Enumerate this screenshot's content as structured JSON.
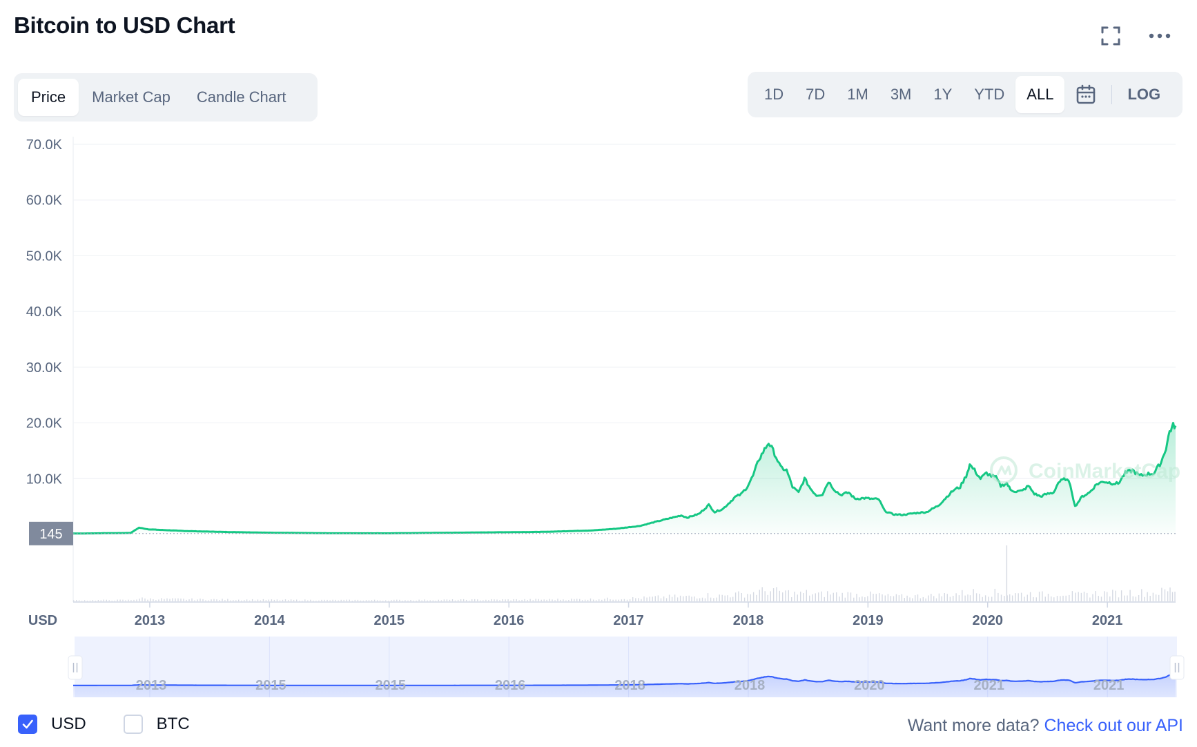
{
  "header": {
    "title": "Bitcoin to USD Chart",
    "fullscreen_icon": "expand-icon",
    "more_icon": "more-horizontal-icon"
  },
  "view_tabs": [
    {
      "label": "Price",
      "active": true
    },
    {
      "label": "Market Cap",
      "active": false
    },
    {
      "label": "Candle Chart",
      "active": false
    }
  ],
  "range_tabs": [
    {
      "label": "1D",
      "active": false
    },
    {
      "label": "7D",
      "active": false
    },
    {
      "label": "1M",
      "active": false
    },
    {
      "label": "3M",
      "active": false
    },
    {
      "label": "1Y",
      "active": false
    },
    {
      "label": "YTD",
      "active": false
    },
    {
      "label": "ALL",
      "active": true
    }
  ],
  "calendar_icon": "calendar-icon",
  "log_label": "LOG",
  "chart_data": {
    "type": "area",
    "title": "",
    "ylabel": "",
    "y_unit_label": "USD",
    "ylim": [
      0,
      70000
    ],
    "y_ticks": [
      "70.0K",
      "60.0K",
      "50.0K",
      "40.0K",
      "30.0K",
      "20.0K",
      "10.0K"
    ],
    "y_tick_values": [
      70000,
      60000,
      50000,
      40000,
      30000,
      20000,
      10000
    ],
    "x_ticks": [
      "2013",
      "2014",
      "2015",
      "2016",
      "2017",
      "2018",
      "2019",
      "2020",
      "2021"
    ],
    "x_tick_values": [
      2013,
      2014,
      2015,
      2016,
      2017,
      2018,
      2019,
      2020,
      2021
    ],
    "xlim": [
      2012.37,
      2021.58
    ],
    "baseline_label": "145",
    "baseline_value": 145,
    "series": [
      {
        "color": "#16c784",
        "points": [
          [
            2012.37,
            145
          ],
          [
            2012.85,
            250
          ],
          [
            2012.92,
            1200
          ],
          [
            2013.0,
            900
          ],
          [
            2013.3,
            600
          ],
          [
            2013.6,
            450
          ],
          [
            2014.0,
            300
          ],
          [
            2014.5,
            200
          ],
          [
            2015.0,
            190
          ],
          [
            2015.5,
            290
          ],
          [
            2016.0,
            390
          ],
          [
            2016.3,
            450
          ],
          [
            2016.7,
            700
          ],
          [
            2016.9,
            1000
          ],
          [
            2017.1,
            1500
          ],
          [
            2017.3,
            2600
          ],
          [
            2017.45,
            3400
          ],
          [
            2017.5,
            3000
          ],
          [
            2017.6,
            3700
          ],
          [
            2017.68,
            5300
          ],
          [
            2017.73,
            4000
          ],
          [
            2017.8,
            4600
          ],
          [
            2017.9,
            6700
          ],
          [
            2017.95,
            7200
          ],
          [
            2018.0,
            8500
          ],
          [
            2018.05,
            10500
          ],
          [
            2018.1,
            13500
          ],
          [
            2018.18,
            16500
          ],
          [
            2018.23,
            14500
          ],
          [
            2018.28,
            12000
          ],
          [
            2018.33,
            11500
          ],
          [
            2018.38,
            8500
          ],
          [
            2018.43,
            7500
          ],
          [
            2018.48,
            10000
          ],
          [
            2018.53,
            8200
          ],
          [
            2018.58,
            7000
          ],
          [
            2018.63,
            7200
          ],
          [
            2018.68,
            9500
          ],
          [
            2018.73,
            8000
          ],
          [
            2018.78,
            7100
          ],
          [
            2018.85,
            7500
          ],
          [
            2018.9,
            6400
          ],
          [
            2018.98,
            6500
          ],
          [
            2019.05,
            6350
          ],
          [
            2019.1,
            6300
          ],
          [
            2019.15,
            4200
          ],
          [
            2019.22,
            3600
          ],
          [
            2019.3,
            3500
          ],
          [
            2019.4,
            3800
          ],
          [
            2019.5,
            4000
          ],
          [
            2019.6,
            5200
          ],
          [
            2019.68,
            7000
          ],
          [
            2019.73,
            8000
          ],
          [
            2019.78,
            8500
          ],
          [
            2019.83,
            10500
          ],
          [
            2019.86,
            12500
          ],
          [
            2019.9,
            11500
          ],
          [
            2019.95,
            10000
          ],
          [
            2020.0,
            11000
          ],
          [
            2020.04,
            10500
          ],
          [
            2020.08,
            10200
          ],
          [
            2020.12,
            8700
          ],
          [
            2020.17,
            9200
          ],
          [
            2020.2,
            8000
          ],
          [
            2020.25,
            7700
          ],
          [
            2020.3,
            7800
          ],
          [
            2020.35,
            8700
          ],
          [
            2020.4,
            7300
          ],
          [
            2020.45,
            6800
          ],
          [
            2020.5,
            7200
          ],
          [
            2020.56,
            7500
          ],
          [
            2020.6,
            9300
          ],
          [
            2020.66,
            10000
          ],
          [
            2020.7,
            9000
          ],
          [
            2020.74,
            5000
          ],
          [
            2020.8,
            6800
          ],
          [
            2020.86,
            7500
          ],
          [
            2020.92,
            9000
          ],
          [
            2020.98,
            9500
          ],
          [
            2021.05,
            9200
          ],
          [
            2021.1,
            9100
          ],
          [
            2021.16,
            11000
          ],
          [
            2021.22,
            11500
          ],
          [
            2021.28,
            10500
          ],
          [
            2021.34,
            10800
          ],
          [
            2021.4,
            11000
          ],
          [
            2021.46,
            13000
          ],
          [
            2021.5,
            15500
          ],
          [
            2021.53,
            18500
          ],
          [
            2021.56,
            19500
          ],
          [
            2021.58,
            19500
          ]
        ]
      }
    ]
  },
  "navigator": {
    "x_ticks": [
      "2013",
      "2015",
      "2015",
      "2016",
      "2018",
      "2018",
      "2020",
      "2021",
      "2021"
    ]
  },
  "watermark": "CoinMarketCap",
  "footer": {
    "usd_label": "USD",
    "usd_checked": true,
    "btc_label": "BTC",
    "btc_checked": false,
    "more_data_text": "Want more data?",
    "api_link_text": "Check out our API"
  }
}
